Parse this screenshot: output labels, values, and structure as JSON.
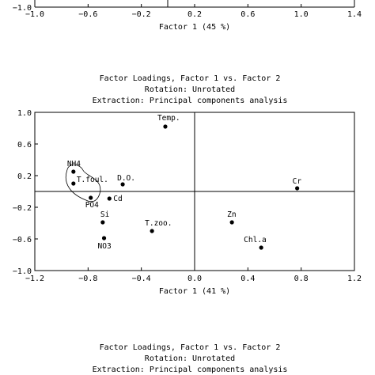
{
  "top_fragment": {
    "x_ticks": [
      "−1.0",
      "−0.6",
      "−0.2",
      "0.2",
      "0.6",
      "1.0",
      "1.4"
    ],
    "y_tick": "−1.0",
    "xlabel": "Factor 1 (45 %)"
  },
  "chart_data": {
    "type": "scatter",
    "title_lines": [
      "Factor Loadings, Factor 1 vs. Factor 2",
      "Rotation: Unrotated",
      "Extraction: Principal components analysis"
    ],
    "xlabel": "Factor 1 (41 %)",
    "ylabel": "",
    "xlim": [
      -1.2,
      1.2
    ],
    "ylim": [
      -1.0,
      1.0
    ],
    "x_ticks": [
      "−1.2",
      "−0.8",
      "−0.4",
      "0.0",
      "0.4",
      "0.8",
      "1.2"
    ],
    "y_ticks": [
      "1.0",
      "0.6",
      "0.2",
      "−0.2",
      "−0.6",
      "−1.0"
    ],
    "grid": false,
    "reference_lines": {
      "x": 0.0,
      "y": 0.0
    },
    "points": [
      {
        "label": "Temp.",
        "x": -0.22,
        "y": 0.82
      },
      {
        "label": "NH4",
        "x": -0.91,
        "y": 0.25
      },
      {
        "label": "T.foul.",
        "x": -0.91,
        "y": 0.1
      },
      {
        "label": "D.O.",
        "x": -0.54,
        "y": 0.09
      },
      {
        "label": "PO4",
        "x": -0.78,
        "y": -0.08
      },
      {
        "label": "Cd",
        "x": -0.64,
        "y": -0.09
      },
      {
        "label": "Cr",
        "x": 0.77,
        "y": 0.04
      },
      {
        "label": "Si",
        "x": -0.69,
        "y": -0.39
      },
      {
        "label": "Zn",
        "x": 0.28,
        "y": -0.39
      },
      {
        "label": "T.zoo.",
        "x": -0.32,
        "y": -0.5
      },
      {
        "label": "NO3",
        "x": -0.68,
        "y": -0.59
      },
      {
        "label": "Chl.a",
        "x": 0.5,
        "y": -0.71
      }
    ],
    "enclosed_group": [
      "NH4",
      "T.foul.",
      "PO4"
    ]
  },
  "bottom_fragment": {
    "title_lines": [
      "Factor Loadings, Factor 1 vs. Factor 2",
      "Rotation: Unrotated",
      "Extraction: Principal components analysis"
    ]
  }
}
